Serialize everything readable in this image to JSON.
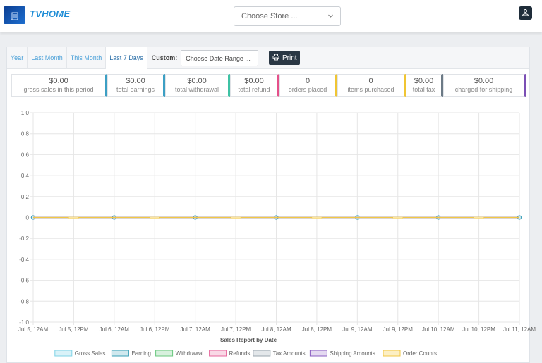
{
  "header": {
    "brand": "TVHOME",
    "store_select": {
      "placeholder": "Choose Store ..."
    },
    "icons": {
      "logo": "building-logo-icon",
      "dropdown": "chevron-down-icon",
      "user": "user-icon"
    }
  },
  "filters": {
    "tabs": [
      {
        "label": "Year"
      },
      {
        "label": "Last Month"
      },
      {
        "label": "This Month"
      },
      {
        "label": "Last 7 Days",
        "active": true
      }
    ],
    "custom_label": "Custom:",
    "date_range": {
      "placeholder": "Choose Date Range ..."
    },
    "print_label": "Print"
  },
  "stats": [
    {
      "value": "$0.00",
      "label": "gross sales in this period",
      "color": "#3c9fc4"
    },
    {
      "value": "$0.00",
      "label": "total earnings",
      "color": "#3c9fc4"
    },
    {
      "value": "$0.00",
      "label": "total withdrawal",
      "color": "#3ec2a4"
    },
    {
      "value": "$0.00",
      "label": "total refund",
      "color": "#e5508a"
    },
    {
      "value": "0",
      "label": "orders placed",
      "color": "#f0c533"
    },
    {
      "value": "0",
      "label": "items purchased",
      "color": "#f0c533"
    },
    {
      "value": "$0.00",
      "label": "total tax",
      "color": "#6c7a86"
    },
    {
      "value": "$0.00",
      "label": "charged for shipping",
      "color": "#7b4fb5"
    }
  ],
  "chart_data": {
    "type": "line",
    "title": "",
    "xlabel": "Sales Report by Date",
    "ylabel": "",
    "ylim": [
      -1.0,
      1.0
    ],
    "yticks": [
      "1.0",
      "0.8",
      "0.6",
      "0.4",
      "0.2",
      "0",
      "-0.2",
      "-0.4",
      "-0.6",
      "-0.8",
      "-1.0"
    ],
    "x_ticks": [
      "Jul 5, 12AM",
      "Jul 5, 12PM",
      "Jul 6, 12AM",
      "Jul 6, 12PM",
      "Jul 7, 12AM",
      "Jul 7, 12PM",
      "Jul 8, 12AM",
      "Jul 8, 12PM",
      "Jul 9, 12AM",
      "Jul 9, 12PM",
      "Jul 10, 12AM",
      "Jul 10, 12PM",
      "Jul 11, 12AM"
    ],
    "x": [
      "Jul 5, 12AM",
      "Jul 6, 12AM",
      "Jul 7, 12AM",
      "Jul 8, 12AM",
      "Jul 9, 12AM",
      "Jul 10, 12AM",
      "Jul 11, 12AM"
    ],
    "grid": true,
    "legend_position": "bottom",
    "series": [
      {
        "name": "Gross Sales",
        "values": [
          0,
          0,
          0,
          0,
          0,
          0,
          0
        ],
        "color": "#7fd3e6",
        "fill": "#d9f2f8"
      },
      {
        "name": "Earning",
        "values": [
          0,
          0,
          0,
          0,
          0,
          0,
          0
        ],
        "color": "#3a9fb7",
        "fill": "#cfe8ee"
      },
      {
        "name": "Withdrawal",
        "values": [
          0,
          0,
          0,
          0,
          0,
          0,
          0
        ],
        "color": "#68c77d",
        "fill": "#d7f0dd"
      },
      {
        "name": "Refunds",
        "values": [
          0,
          0,
          0,
          0,
          0,
          0,
          0
        ],
        "color": "#e7679c",
        "fill": "#f9d9e6"
      },
      {
        "name": "Tax Amounts",
        "values": [
          0,
          0,
          0,
          0,
          0,
          0,
          0
        ],
        "color": "#9aa4ad",
        "fill": "#e3e7ea"
      },
      {
        "name": "Shipping Amounts",
        "values": [
          0,
          0,
          0,
          0,
          0,
          0,
          0
        ],
        "color": "#8a5dc1",
        "fill": "#e4d9f1"
      },
      {
        "name": "Order Counts",
        "values": [
          0,
          0,
          0,
          0,
          0,
          0,
          0
        ],
        "color": "#f2c744",
        "fill": "#fcefc4"
      }
    ]
  }
}
